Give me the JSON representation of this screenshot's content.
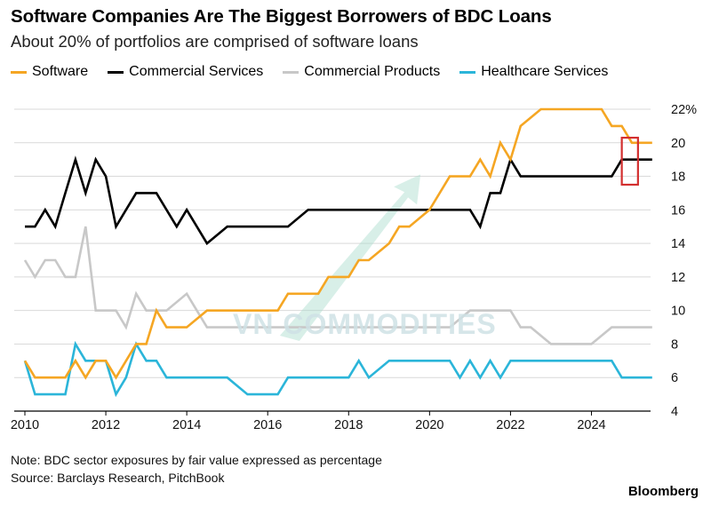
{
  "header": {
    "title": "Software Companies Are The Biggest Borrowers of BDC Loans",
    "subtitle": "About 20% of portfolios are comprised of software loans"
  },
  "footer": {
    "note": "Note: BDC sector exposures by fair value expressed as percentage",
    "source": "Source: Barclays Research, PitchBook",
    "brand": "Bloomberg"
  },
  "watermark": {
    "text": "VN COMMODITIES"
  },
  "colors": {
    "software": "#F5A623",
    "commercial_services": "#000000",
    "commercial_products": "#C8C8C8",
    "healthcare_services": "#2BB5D9",
    "highlight": "#D32F2F",
    "grid": "#D9D9D9",
    "watermark_arrow": "#A9DCCB"
  },
  "chart_data": {
    "type": "line",
    "xlim": [
      2010,
      2025.9
    ],
    "ylim": [
      4,
      22
    ],
    "x_ticks": [
      2010,
      2012,
      2014,
      2016,
      2018,
      2020,
      2022,
      2024
    ],
    "x_tick_labels": [
      "2010",
      "2012",
      "2014",
      "2016",
      "2018",
      "2020",
      "2022",
      "2024"
    ],
    "y_ticks": [
      4,
      6,
      8,
      10,
      12,
      14,
      16,
      18,
      20,
      22
    ],
    "y_tick_labels": [
      "4",
      "6",
      "8",
      "10",
      "12",
      "14",
      "16",
      "18",
      "20",
      "22%"
    ],
    "grid": true,
    "legend_position": "top-left",
    "highlight_x_range": [
      2024.75,
      2025.15
    ],
    "highlight_y_range": [
      17.5,
      20.3
    ],
    "series": [
      {
        "name": "Software",
        "color_key": "software",
        "x": [
          2010,
          2010.25,
          2010.5,
          2011,
          2011.25,
          2011.5,
          2011.75,
          2012,
          2012.25,
          2012.75,
          2013,
          2013.25,
          2013.5,
          2014,
          2014.5,
          2015,
          2015.5,
          2016,
          2016.25,
          2016.5,
          2017,
          2017.25,
          2017.5,
          2018,
          2018.25,
          2018.5,
          2019,
          2019.25,
          2019.5,
          2020,
          2020.5,
          2021,
          2021.25,
          2021.5,
          2021.75,
          2022,
          2022.25,
          2022.75,
          2023,
          2024.25,
          2024.5,
          2024.75,
          2025,
          2025.5
        ],
        "y": [
          7,
          6,
          6,
          6,
          7,
          6,
          7,
          7,
          6,
          8,
          8,
          10,
          9,
          9,
          10,
          10,
          10,
          10,
          10,
          11,
          11,
          11,
          12,
          12,
          13,
          13,
          14,
          15,
          15,
          16,
          18,
          18,
          19,
          18,
          20,
          19,
          21,
          22,
          22,
          22,
          21,
          21,
          20,
          20
        ]
      },
      {
        "name": "Commercial Services",
        "color_key": "commercial_services",
        "x": [
          2010,
          2010.25,
          2010.5,
          2010.75,
          2011,
          2011.25,
          2011.5,
          2011.75,
          2012,
          2012.25,
          2012.5,
          2012.75,
          2013,
          2013.25,
          2013.5,
          2013.75,
          2014,
          2014.25,
          2014.5,
          2015,
          2016,
          2016.5,
          2017,
          2018,
          2019,
          2020,
          2020.5,
          2021,
          2021.25,
          2021.5,
          2021.75,
          2022,
          2022.25,
          2023,
          2024,
          2024.5,
          2024.75,
          2025,
          2025.5
        ],
        "y": [
          15,
          15,
          16,
          15,
          17,
          19,
          17,
          19,
          18,
          15,
          16,
          17,
          17,
          17,
          16,
          15,
          16,
          15,
          14,
          15,
          15,
          15,
          16,
          16,
          16,
          16,
          16,
          16,
          15,
          17,
          17,
          19,
          18,
          18,
          18,
          18,
          19,
          19,
          19
        ]
      },
      {
        "name": "Commercial Products",
        "color_key": "commercial_products",
        "x": [
          2010,
          2010.25,
          2010.5,
          2010.75,
          2011,
          2011.25,
          2011.5,
          2011.75,
          2012,
          2012.25,
          2012.5,
          2012.75,
          2013,
          2013.5,
          2014,
          2014.25,
          2014.5,
          2015,
          2016,
          2017,
          2018,
          2019,
          2020,
          2020.5,
          2021,
          2021.5,
          2022,
          2022.25,
          2022.5,
          2023,
          2023.5,
          2024,
          2024.5,
          2025,
          2025.5
        ],
        "y": [
          13,
          12,
          13,
          13,
          12,
          12,
          15,
          10,
          10,
          10,
          9,
          11,
          10,
          10,
          11,
          10,
          9,
          9,
          9,
          9,
          9,
          9,
          9,
          9,
          10,
          10,
          10,
          9,
          9,
          8,
          8,
          8,
          9,
          9,
          9
        ]
      },
      {
        "name": "Healthcare Services",
        "color_key": "healthcare_services",
        "x": [
          2010,
          2010.25,
          2010.5,
          2010.75,
          2011,
          2011.25,
          2011.5,
          2011.75,
          2012,
          2012.25,
          2012.5,
          2012.75,
          2013,
          2013.25,
          2013.5,
          2014,
          2014.5,
          2015,
          2015.5,
          2016,
          2016.25,
          2016.5,
          2017,
          2017.5,
          2018,
          2018.25,
          2018.5,
          2019,
          2019.5,
          2020,
          2020.5,
          2020.75,
          2021,
          2021.25,
          2021.5,
          2021.75,
          2022,
          2022.25,
          2022.5,
          2023,
          2023.5,
          2024,
          2024.5,
          2024.75,
          2025,
          2025.5
        ],
        "y": [
          7,
          5,
          5,
          5,
          5,
          8,
          7,
          7,
          7,
          5,
          6,
          8,
          7,
          7,
          6,
          6,
          6,
          6,
          5,
          5,
          5,
          6,
          6,
          6,
          6,
          7,
          6,
          7,
          7,
          7,
          7,
          6,
          7,
          6,
          7,
          6,
          7,
          7,
          7,
          7,
          7,
          7,
          7,
          6,
          6,
          6
        ]
      }
    ]
  }
}
